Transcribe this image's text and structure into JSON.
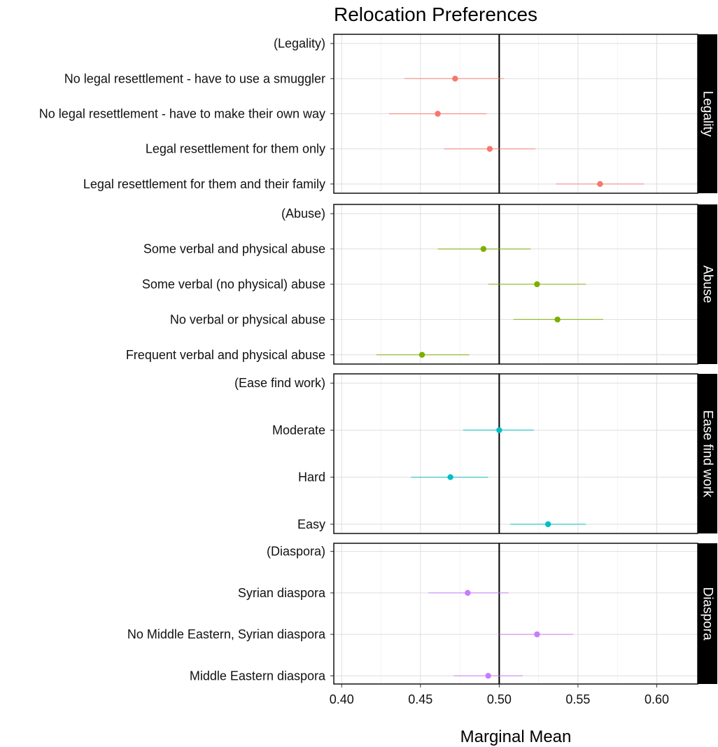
{
  "chart_data": {
    "type": "scatter",
    "subtype": "point-range (coefficient plot with horizontal confidence intervals), faceted",
    "title": "Relocation Preferences",
    "xlabel": "Marginal Mean",
    "ylabel": "",
    "xlim": [
      0.395,
      0.626
    ],
    "x_ticks": [
      0.4,
      0.45,
      0.5,
      0.55,
      0.6
    ],
    "x_tick_labels": [
      "0.40",
      "0.45",
      "0.50",
      "0.55",
      "0.60"
    ],
    "reference_line": 0.5,
    "grid": true,
    "legend": "none",
    "facets": [
      {
        "name": "Legality",
        "color": "#F8766D",
        "rows": [
          {
            "label": "(Legality)",
            "estimate": null,
            "lower": null,
            "upper": null
          },
          {
            "label": "No legal resettlement - have to use a smuggler",
            "estimate": 0.472,
            "lower": 0.44,
            "upper": 0.503
          },
          {
            "label": "No legal resettlement - have to make their own way",
            "estimate": 0.461,
            "lower": 0.43,
            "upper": 0.492
          },
          {
            "label": "Legal resettlement for them only",
            "estimate": 0.494,
            "lower": 0.465,
            "upper": 0.523
          },
          {
            "label": "Legal resettlement for them and their family",
            "estimate": 0.564,
            "lower": 0.536,
            "upper": 0.592
          }
        ]
      },
      {
        "name": "Abuse",
        "color": "#7CAE00",
        "rows": [
          {
            "label": "(Abuse)",
            "estimate": null,
            "lower": null,
            "upper": null
          },
          {
            "label": "Some verbal and physical abuse",
            "estimate": 0.49,
            "lower": 0.461,
            "upper": 0.52
          },
          {
            "label": "Some verbal (no physical) abuse",
            "estimate": 0.524,
            "lower": 0.493,
            "upper": 0.555
          },
          {
            "label": "No verbal or physical abuse",
            "estimate": 0.537,
            "lower": 0.509,
            "upper": 0.566
          },
          {
            "label": "Frequent verbal and physical abuse",
            "estimate": 0.451,
            "lower": 0.422,
            "upper": 0.481
          }
        ]
      },
      {
        "name": "Ease find work",
        "color": "#00BFC4",
        "rows": [
          {
            "label": "(Ease find work)",
            "estimate": null,
            "lower": null,
            "upper": null
          },
          {
            "label": "Moderate",
            "estimate": 0.5,
            "lower": 0.477,
            "upper": 0.522
          },
          {
            "label": "Hard",
            "estimate": 0.469,
            "lower": 0.444,
            "upper": 0.493
          },
          {
            "label": "Easy",
            "estimate": 0.531,
            "lower": 0.507,
            "upper": 0.555
          }
        ]
      },
      {
        "name": "Diaspora",
        "color": "#C77CFF",
        "rows": [
          {
            "label": "(Diaspora)",
            "estimate": null,
            "lower": null,
            "upper": null
          },
          {
            "label": "Syrian diaspora",
            "estimate": 0.48,
            "lower": 0.455,
            "upper": 0.506
          },
          {
            "label": "No Middle Eastern, Syrian diaspora",
            "estimate": 0.524,
            "lower": 0.5,
            "upper": 0.547
          },
          {
            "label": "Middle Eastern diaspora",
            "estimate": 0.493,
            "lower": 0.471,
            "upper": 0.515
          }
        ]
      }
    ]
  }
}
